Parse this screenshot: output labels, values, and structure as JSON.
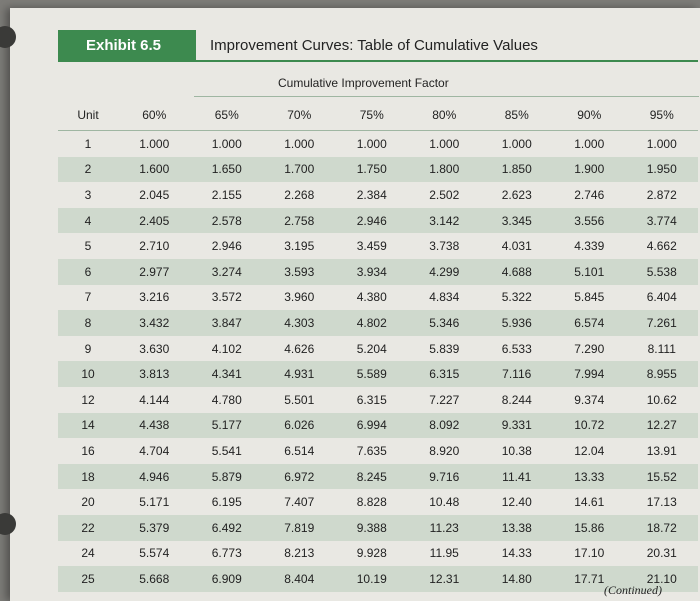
{
  "exhibit": {
    "label": "Exhibit 6.5",
    "title": "Improvement Curves: Table of Cumulative Values"
  },
  "table": {
    "group_title": "Cumulative Improvement Factor",
    "columns": [
      "Unit",
      "60%",
      "65%",
      "70%",
      "75%",
      "80%",
      "85%",
      "90%",
      "95%"
    ],
    "rows": [
      [
        "1",
        "1.000",
        "1.000",
        "1.000",
        "1.000",
        "1.000",
        "1.000",
        "1.000",
        "1.000"
      ],
      [
        "2",
        "1.600",
        "1.650",
        "1.700",
        "1.750",
        "1.800",
        "1.850",
        "1.900",
        "1.950"
      ],
      [
        "3",
        "2.045",
        "2.155",
        "2.268",
        "2.384",
        "2.502",
        "2.623",
        "2.746",
        "2.872"
      ],
      [
        "4",
        "2.405",
        "2.578",
        "2.758",
        "2.946",
        "3.142",
        "3.345",
        "3.556",
        "3.774"
      ],
      [
        "5",
        "2.710",
        "2.946",
        "3.195",
        "3.459",
        "3.738",
        "4.031",
        "4.339",
        "4.662"
      ],
      [
        "6",
        "2.977",
        "3.274",
        "3.593",
        "3.934",
        "4.299",
        "4.688",
        "5.101",
        "5.538"
      ],
      [
        "7",
        "3.216",
        "3.572",
        "3.960",
        "4.380",
        "4.834",
        "5.322",
        "5.845",
        "6.404"
      ],
      [
        "8",
        "3.432",
        "3.847",
        "4.303",
        "4.802",
        "5.346",
        "5.936",
        "6.574",
        "7.261"
      ],
      [
        "9",
        "3.630",
        "4.102",
        "4.626",
        "5.204",
        "5.839",
        "6.533",
        "7.290",
        "8.111"
      ],
      [
        "10",
        "3.813",
        "4.341",
        "4.931",
        "5.589",
        "6.315",
        "7.116",
        "7.994",
        "8.955"
      ],
      [
        "12",
        "4.144",
        "4.780",
        "5.501",
        "6.315",
        "7.227",
        "8.244",
        "9.374",
        "10.62"
      ],
      [
        "14",
        "4.438",
        "5.177",
        "6.026",
        "6.994",
        "8.092",
        "9.331",
        "10.72",
        "12.27"
      ],
      [
        "16",
        "4.704",
        "5.541",
        "6.514",
        "7.635",
        "8.920",
        "10.38",
        "12.04",
        "13.91"
      ],
      [
        "18",
        "4.946",
        "5.879",
        "6.972",
        "8.245",
        "9.716",
        "11.41",
        "13.33",
        "15.52"
      ],
      [
        "20",
        "5.171",
        "6.195",
        "7.407",
        "8.828",
        "10.48",
        "12.40",
        "14.61",
        "17.13"
      ],
      [
        "22",
        "5.379",
        "6.492",
        "7.819",
        "9.388",
        "11.23",
        "13.38",
        "15.86",
        "18.72"
      ],
      [
        "24",
        "5.574",
        "6.773",
        "8.213",
        "9.928",
        "11.95",
        "14.33",
        "17.10",
        "20.31"
      ],
      [
        "25",
        "5.668",
        "6.909",
        "8.404",
        "10.19",
        "12.31",
        "14.80",
        "17.71",
        "21.10"
      ]
    ]
  },
  "footer": {
    "continued": "(Continued)"
  },
  "colors": {
    "accent": "#3d8a4f",
    "row_stripe": "#cfd9cd",
    "paper": "#e9e8e3"
  }
}
